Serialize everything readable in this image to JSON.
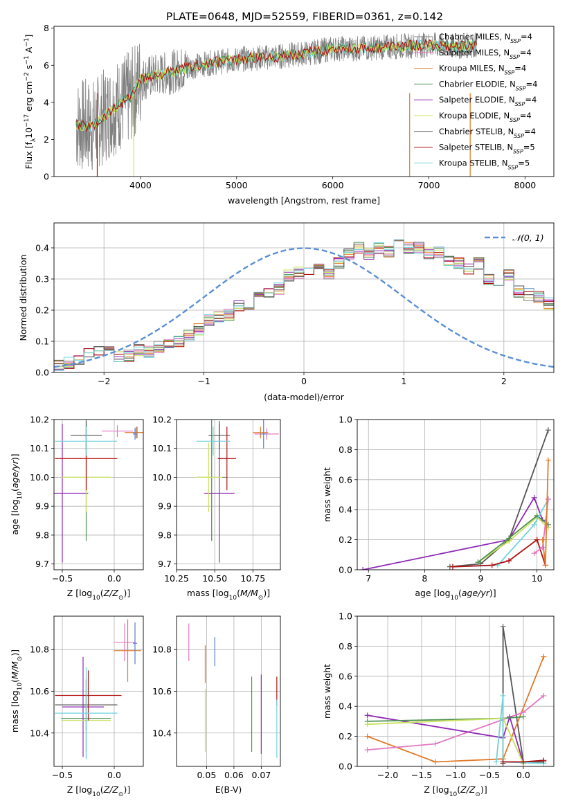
{
  "title": "PLATE=0648, MJD=52559, FIBERID=0361, z=0.142",
  "colors": {
    "Chabrier MILES": "#808080",
    "Salpeter MILES": "#e377c2",
    "Kroupa MILES": "#e07a29",
    "Chabrier ELODIE": "#4e8f4e",
    "Salpeter ELODIE": "#8e2ab5",
    "Kroupa ELODIE": "#c8e05a",
    "Chabrier STELIB": "#555555",
    "Salpeter STELIB": "#b01010",
    "Kroupa STELIB": "#6fd3dc",
    "extra_blue": "#5b7fd0",
    "normal_curve": "#5b8fd6"
  },
  "chart_data": [
    {
      "id": "spectrum",
      "type": "line",
      "xlabel": "wavelength [Angstrom, rest frame]",
      "ylabel": "Flux [f_λ 10^-17 erg cm^-2 s^-1 A^-1]",
      "xlim": [
        3100,
        8300
      ],
      "ylim": [
        0,
        8.1
      ],
      "xticks": [
        4000,
        5000,
        6000,
        7000,
        8000
      ],
      "yticks": [
        0,
        2,
        4,
        6,
        8
      ],
      "legend_location": "upper right",
      "legend": [
        {
          "name": "Chabrier MILES",
          "nssp": "4"
        },
        {
          "name": "Salpeter MILES",
          "nssp": "4"
        },
        {
          "name": "Kroupa MILES",
          "nssp": "4"
        },
        {
          "name": "Chabrier ELODIE",
          "nssp": "4"
        },
        {
          "name": "Salpeter ELODIE",
          "nssp": "4"
        },
        {
          "name": "Kroupa ELODIE",
          "nssp": "4"
        },
        {
          "name": "Chabrier STELIB",
          "nssp": "4"
        },
        {
          "name": "Salpeter STELIB",
          "nssp": "5"
        },
        {
          "name": "Kroupa STELIB",
          "nssp": "5"
        }
      ],
      "continuum": {
        "x": [
          3330,
          3500,
          3700,
          3900,
          4000,
          4100,
          4300,
          4500,
          4700,
          5000,
          5200,
          5500,
          5800,
          6000,
          6300,
          6600,
          7000,
          7300,
          7500
        ],
        "y": [
          2.8,
          2.7,
          3.6,
          4.3,
          5.2,
          5.4,
          5.6,
          5.9,
          6.1,
          6.3,
          6.4,
          6.5,
          6.7,
          6.9,
          6.9,
          7.0,
          7.1,
          7.0,
          7.1
        ]
      }
    },
    {
      "id": "residuals",
      "type": "histogram",
      "xlabel": "(data-model)/error",
      "ylabel": "Normed distribution",
      "xlim": [
        -2.5,
        2.5
      ],
      "ylim": [
        0,
        0.48
      ],
      "xticks": [
        -2,
        -1,
        0,
        1,
        2
      ],
      "yticks": [
        0.0,
        0.1,
        0.2,
        0.3,
        0.4
      ],
      "legend": "𝒩(0, 1)",
      "legend_location": "upper right",
      "bin_width": 0.1,
      "bin_start": -2.5,
      "base_heights": [
        0.025,
        0.03,
        0.035,
        0.06,
        0.065,
        0.075,
        0.05,
        0.055,
        0.07,
        0.065,
        0.08,
        0.09,
        0.1,
        0.12,
        0.14,
        0.17,
        0.18,
        0.185,
        0.21,
        0.22,
        0.245,
        0.26,
        0.27,
        0.31,
        0.32,
        0.33,
        0.34,
        0.32,
        0.35,
        0.38,
        0.4,
        0.38,
        0.4,
        0.39,
        0.42,
        0.4,
        0.4,
        0.38,
        0.385,
        0.36,
        0.35,
        0.33,
        0.35,
        0.3,
        0.27,
        0.31,
        0.26,
        0.25,
        0.24,
        0.22,
        0.2,
        0.19,
        0.18,
        0.16,
        0.14,
        0.13,
        0.11,
        0.1,
        0.095,
        0.09,
        0.085,
        0.085,
        0.07,
        0.07,
        0.05,
        0.045,
        0.04,
        0.035,
        0.03,
        0.025
      ]
    },
    {
      "id": "age_vs_Z",
      "type": "scatter",
      "xlabel": "Z [log10(Z/Z⊙)]",
      "ylabel": "age  [log10(age/yr)]",
      "xlim": [
        -0.58,
        0.28
      ],
      "ylim": [
        9.68,
        10.2
      ],
      "xticks": [
        -0.5,
        0.0
      ],
      "yticks": [
        9.7,
        9.8,
        9.9,
        10.0,
        10.1,
        10.2
      ],
      "points": [
        {
          "model": "Chabrier MILES",
          "x": 0.22,
          "y": 10.155,
          "xerr": 0.05,
          "yerr": 0.02
        },
        {
          "model": "Salpeter MILES",
          "x": 0.03,
          "y": 10.16,
          "xerr": 0.15,
          "yerr": 0.02
        },
        {
          "model": "Kroupa MILES",
          "x": 0.21,
          "y": 10.155,
          "xerr": 0.11,
          "yerr": 0.02
        },
        {
          "model": "Chabrier ELODIE",
          "x": -0.27,
          "y": 10.0,
          "xerr": 0.23,
          "yerr": 0.22
        },
        {
          "model": "Salpeter ELODIE",
          "x": -0.5,
          "y": 9.945,
          "xerr": 0.25,
          "yerr": 0.24
        },
        {
          "model": "Kroupa ELODIE",
          "x": -0.27,
          "y": 10.0,
          "xerr": 0.24,
          "yerr": 0.12
        },
        {
          "model": "Chabrier STELIB",
          "x": -0.27,
          "y": 10.145,
          "xerr": 0.15,
          "yerr": 0.05
        },
        {
          "model": "Salpeter STELIB",
          "x": -0.27,
          "y": 10.065,
          "xerr": 0.3,
          "yerr": 0.11
        },
        {
          "model": "Kroupa STELIB",
          "x": -0.27,
          "y": 10.125,
          "xerr": 0.3,
          "yerr": 0.05
        },
        {
          "model": "extra_blue",
          "x": 0.2,
          "y": 10.15,
          "xerr": 0.02,
          "yerr": 0.02
        }
      ]
    },
    {
      "id": "age_vs_mass",
      "type": "scatter",
      "xlabel": "mass [log10(M/M⊙)]",
      "ylabel": "",
      "xlim": [
        10.25,
        10.93
      ],
      "ylim": [
        9.68,
        10.2
      ],
      "xticks": [
        10.25,
        10.5,
        10.75
      ],
      "yticks": [
        9.7,
        9.8,
        9.9,
        10.0,
        10.1,
        10.2
      ],
      "points": [
        {
          "model": "Salpeter MILES",
          "x": 10.84,
          "y": 10.15,
          "xerr": 0.08,
          "yerr": 0.02
        },
        {
          "model": "Kroupa MILES",
          "x": 10.8,
          "y": 10.155,
          "xerr": 0.05,
          "yerr": 0.02
        },
        {
          "model": "extra_blue",
          "x": 10.82,
          "y": 10.15,
          "xerr": 0.02,
          "yerr": 0.05
        },
        {
          "model": "Chabrier ELODIE",
          "x": 10.48,
          "y": 10.0,
          "xerr": 0.1,
          "yerr": 0.22
        },
        {
          "model": "Salpeter ELODIE",
          "x": 10.53,
          "y": 9.945,
          "xerr": 0.1,
          "yerr": 0.24
        },
        {
          "model": "Kroupa ELODIE",
          "x": 10.46,
          "y": 10.0,
          "xerr": 0.09,
          "yerr": 0.12
        },
        {
          "model": "Chabrier STELIB",
          "x": 10.53,
          "y": 10.145,
          "xerr": 0.07,
          "yerr": 0.05
        },
        {
          "model": "Salpeter STELIB",
          "x": 10.58,
          "y": 10.065,
          "xerr": 0.06,
          "yerr": 0.11
        },
        {
          "model": "Kroupa STELIB",
          "x": 10.49,
          "y": 10.125,
          "xerr": 0.11,
          "yerr": 0.05
        }
      ]
    },
    {
      "id": "massweight_vs_age",
      "type": "line",
      "xlabel": "age  [log10(age/yr)]",
      "ylabel": "mass weight",
      "xlim": [
        6.8,
        10.3
      ],
      "ylim": [
        0,
        1.0
      ],
      "xticks": [
        7,
        8,
        9,
        10
      ],
      "yticks": [
        0.0,
        0.2,
        0.4,
        0.6,
        0.8,
        1.0
      ],
      "series": [
        {
          "model": "Salpeter ELODIE",
          "x": [
            6.9,
            9.5,
            9.95,
            10.1
          ],
          "y": [
            0.0,
            0.2,
            0.48,
            0.33
          ]
        },
        {
          "model": "Chabrier STELIB",
          "x": [
            8.45,
            9.0,
            9.5,
            10.2
          ],
          "y": [
            0.02,
            0.04,
            0.2,
            0.93
          ]
        },
        {
          "model": "Kroupa ELODIE",
          "x": [
            8.95,
            9.5,
            10.0,
            10.2
          ],
          "y": [
            0.05,
            0.19,
            0.35,
            0.28
          ]
        },
        {
          "model": "Chabrier ELODIE",
          "x": [
            8.95,
            9.5,
            10.0,
            10.2
          ],
          "y": [
            0.05,
            0.21,
            0.36,
            0.3
          ]
        },
        {
          "model": "Kroupa STELIB",
          "x": [
            8.5,
            9.3,
            9.95,
            10.2
          ],
          "y": [
            0.02,
            0.03,
            0.3,
            0.47
          ]
        },
        {
          "model": "Salpeter STELIB",
          "x": [
            8.5,
            9.2,
            9.5,
            10.0,
            10.15
          ],
          "y": [
            0.02,
            0.03,
            0.06,
            0.2,
            0.03
          ]
        },
        {
          "model": "Salpeter MILES",
          "x": [
            9.95,
            10.1,
            10.2
          ],
          "y": [
            0.11,
            0.15,
            0.47
          ]
        },
        {
          "model": "Kroupa MILES",
          "x": [
            10.1,
            10.15,
            10.2
          ],
          "y": [
            0.2,
            0.03,
            0.73
          ]
        }
      ]
    },
    {
      "id": "mass_vs_Z",
      "type": "scatter",
      "xlabel": "Z [log10(Z/Z⊙)]",
      "ylabel": "mass [log10(M/M⊙)]",
      "xlim": [
        -0.58,
        0.28
      ],
      "ylim": [
        10.24,
        10.96
      ],
      "xticks": [
        -0.5,
        0.0
      ],
      "yticks": [
        10.4,
        10.6,
        10.8
      ],
      "points": [
        {
          "model": "Salpeter MILES",
          "x": 0.1,
          "y": 10.835,
          "xerr": 0.1,
          "yerr": 0.09
        },
        {
          "model": "Kroupa MILES",
          "x": 0.13,
          "y": 10.795,
          "xerr": 0.13,
          "yerr": 0.15
        },
        {
          "model": "extra_blue",
          "x": 0.2,
          "y": 10.83,
          "xerr": 0.02,
          "yerr": 0.1
        },
        {
          "model": "Chabrier ELODIE",
          "x": -0.27,
          "y": 10.47,
          "xerr": 0.24,
          "yerr": 0.19
        },
        {
          "model": "Salpeter ELODIE",
          "x": -0.3,
          "y": 10.525,
          "xerr": 0.2,
          "yerr": 0.24
        },
        {
          "model": "Kroupa ELODIE",
          "x": -0.27,
          "y": 10.46,
          "xerr": 0.24,
          "yerr": 0.15
        },
        {
          "model": "Chabrier STELIB",
          "x": -0.27,
          "y": 10.535,
          "xerr": 0.3,
          "yerr": 0.12
        },
        {
          "model": "Salpeter STELIB",
          "x": -0.25,
          "y": 10.58,
          "xerr": 0.32,
          "yerr": 0.12
        },
        {
          "model": "Kroupa STELIB",
          "x": -0.27,
          "y": 10.495,
          "xerr": 0.3,
          "yerr": 0.22
        }
      ]
    },
    {
      "id": "mass_vs_ebv",
      "type": "scatter",
      "xlabel": "E(B-V)",
      "ylabel": "",
      "xlim": [
        0.039,
        0.077
      ],
      "ylim": [
        10.24,
        10.96
      ],
      "xticks": [
        0.05,
        0.06,
        0.07
      ],
      "yticks": [
        10.4,
        10.6,
        10.8
      ],
      "points": [
        {
          "model": "Salpeter MILES",
          "x": 0.0435,
          "y": 10.835,
          "yerr": 0.09
        },
        {
          "model": "Kroupa MILES",
          "x": 0.0495,
          "y": 10.73,
          "yerr": 0.09
        },
        {
          "model": "extra_blue",
          "x": 0.053,
          "y": 10.79,
          "yerr": 0.07
        },
        {
          "model": "Kroupa ELODIE",
          "x": 0.0495,
          "y": 10.46,
          "yerr": 0.15
        },
        {
          "model": "Chabrier ELODIE",
          "x": 0.0665,
          "y": 10.49,
          "yerr": 0.18
        },
        {
          "model": "Salpeter ELODIE",
          "x": 0.07,
          "y": 10.49,
          "yerr": 0.19
        },
        {
          "model": "Salpeter STELIB",
          "x": 0.0757,
          "y": 10.6,
          "yerr": 0.07
        },
        {
          "model": "Kroupa STELIB",
          "x": 0.0757,
          "y": 10.42,
          "yerr": 0.14
        }
      ]
    },
    {
      "id": "massweight_vs_Z",
      "type": "line",
      "xlabel": "Z [log10(Z/Z⊙)]",
      "ylabel": "mass weight",
      "xlim": [
        -2.45,
        0.45
      ],
      "ylim": [
        0,
        1.0
      ],
      "xticks": [
        -2.0,
        -1.5,
        -1.0,
        -0.5,
        0.0
      ],
      "yticks": [
        0.0,
        0.2,
        0.4,
        0.6,
        0.8,
        1.0
      ],
      "series": [
        {
          "model": "Chabrier STELIB",
          "x": [
            -0.3,
            -0.3,
            0.0,
            0.3
          ],
          "y": [
            0.02,
            0.93,
            0.03,
            0.03
          ]
        },
        {
          "model": "Kroupa MILES",
          "x": [
            -2.3,
            -1.3,
            -0.3,
            0.3
          ],
          "y": [
            0.2,
            0.03,
            0.05,
            0.73
          ]
        },
        {
          "model": "Salpeter MILES",
          "x": [
            -2.3,
            -1.3,
            0.0,
            0.3
          ],
          "y": [
            0.11,
            0.15,
            0.36,
            0.47
          ]
        },
        {
          "model": "Salpeter ELODIE",
          "x": [
            -2.3,
            -0.3,
            -0.2,
            0.0
          ],
          "y": [
            0.34,
            0.19,
            0.33,
            0.02
          ]
        },
        {
          "model": "Chabrier ELODIE",
          "x": [
            -2.3,
            -0.3,
            0.0
          ],
          "y": [
            0.3,
            0.32,
            0.33
          ]
        },
        {
          "model": "Kroupa ELODIE",
          "x": [
            -2.3,
            -0.3,
            0.0
          ],
          "y": [
            0.28,
            0.32,
            0.02
          ]
        },
        {
          "model": "Kroupa STELIB",
          "x": [
            -0.4,
            -0.3,
            -0.3,
            0.3
          ],
          "y": [
            0.03,
            0.47,
            0.03,
            0.02
          ]
        },
        {
          "model": "Salpeter STELIB",
          "x": [
            -0.3,
            0.0,
            0.3
          ],
          "y": [
            0.03,
            0.03,
            0.04
          ]
        }
      ]
    }
  ]
}
